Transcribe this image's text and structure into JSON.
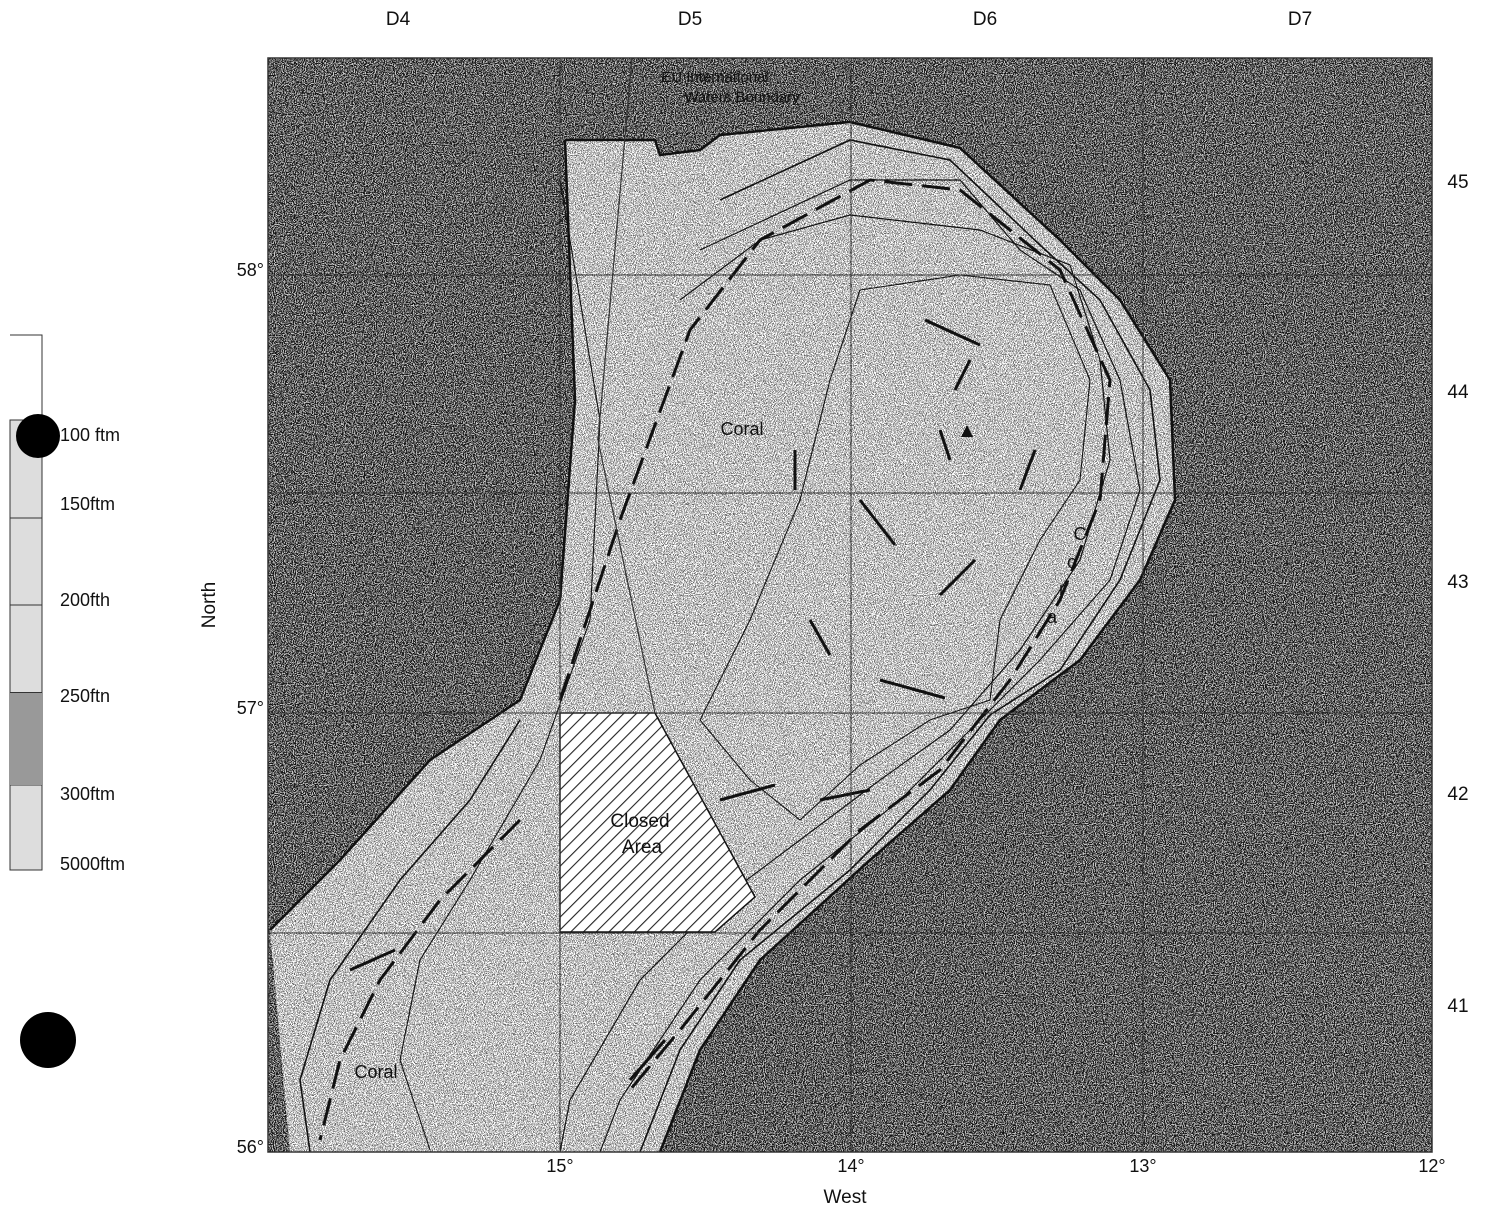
{
  "map": {
    "column_labels": [
      "D4",
      "D5",
      "D6",
      "D7"
    ],
    "row_labels": [
      "45",
      "44",
      "43",
      "42",
      "41"
    ],
    "latitude_labels": [
      "58°",
      "57°",
      "56°"
    ],
    "longitude_labels": [
      "15°",
      "14°",
      "13°",
      "12°"
    ],
    "axis_labels": {
      "y": "North",
      "x": "West"
    },
    "annotations": {
      "boundary": [
        "EU International",
        "Waters Boundary"
      ],
      "coral_upper": "Coral",
      "coral_lower": "Coral",
      "coral_vertical": [
        "C",
        "o",
        "r",
        "a"
      ],
      "closed_area": [
        "Closed",
        "Area"
      ]
    },
    "legend": [
      "100 ftm",
      "150ftm",
      "200fth",
      "250ftn",
      "300ftm",
      "5000ftm"
    ]
  }
}
